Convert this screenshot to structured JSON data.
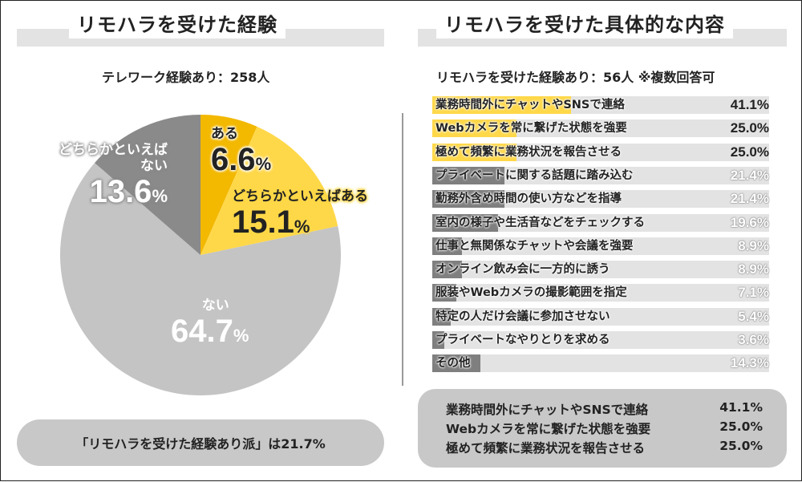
{
  "left_panel": {
    "title": "リモハラを受けた経験",
    "subtitle": "テレワーク経験あり：258人",
    "summary": "「リモハラを受けた経験あり派」は21.7%"
  },
  "right_panel": {
    "title": "リモハラを受けた具体的な内容",
    "subtitle": "リモハラを受けた経験あり：56人 ※複数回答可",
    "summary": [
      {
        "label": "業務時間外にチャットやSNSで連絡",
        "value": "41.1%"
      },
      {
        "label": "Webカメラを常に繋げた状態を強要",
        "value": "25.0%"
      },
      {
        "label": "極めて頻繁に業務状況を報告させる",
        "value": "25.0%"
      }
    ]
  },
  "colors": {
    "yes": "#f3b800",
    "somewhat_yes": "#ffd84a",
    "no": "#c4c4c4",
    "somewhat_no": "#8a8a8a",
    "bar_top": "#ffd84a",
    "bar_rest": "#7f7f7f",
    "bar_track": "#e3e3e3"
  },
  "chart_data": [
    {
      "type": "pie",
      "title": "リモハラを受けた経験",
      "slices": [
        {
          "label": "ある",
          "value": 6.6,
          "display": "6.6",
          "unit": "%",
          "color": "#f3b800"
        },
        {
          "label": "どちらかといえばある",
          "value": 15.1,
          "display": "15.1",
          "unit": "%",
          "color": "#ffd84a"
        },
        {
          "label": "ない",
          "value": 64.7,
          "display": "64.7",
          "unit": "%",
          "color": "#c4c4c4"
        },
        {
          "label_lines": [
            "どちらかといえば",
            "ない"
          ],
          "value": 13.6,
          "display": "13.6",
          "unit": "%",
          "color": "#8a8a8a"
        }
      ]
    },
    {
      "type": "bar",
      "orientation": "horizontal",
      "title": "リモハラを受けた具体的な内容",
      "xlim": [
        0,
        100
      ],
      "categories": [
        "業務時間外にチャットやSNSで連絡",
        "Webカメラを常に繋げた状態を強要",
        "極めて頻繁に業務状況を報告させる",
        "プライベートに関する話題に踏み込む",
        "勤務外含め時間の使い方などを指導",
        "室内の様子や生活音などをチェックする",
        "仕事と無関係なチャットや会議を強要",
        "オンライン飲み会に一方的に誘う",
        "服装やWebカメラの撮影範囲を指定",
        "特定の人だけ会議に参加させない",
        "プライベートなやりとりを求める",
        "その他"
      ],
      "values": [
        41.1,
        25.0,
        25.0,
        21.4,
        21.4,
        19.6,
        8.9,
        8.9,
        7.1,
        5.4,
        3.6,
        14.3
      ],
      "value_labels": [
        "41.1%",
        "25.0%",
        "25.0%",
        "21.4%",
        "21.4%",
        "19.6%",
        "8.9%",
        "8.9%",
        "7.1%",
        "5.4%",
        "3.6%",
        "14.3%"
      ],
      "highlight_top": 3
    }
  ]
}
